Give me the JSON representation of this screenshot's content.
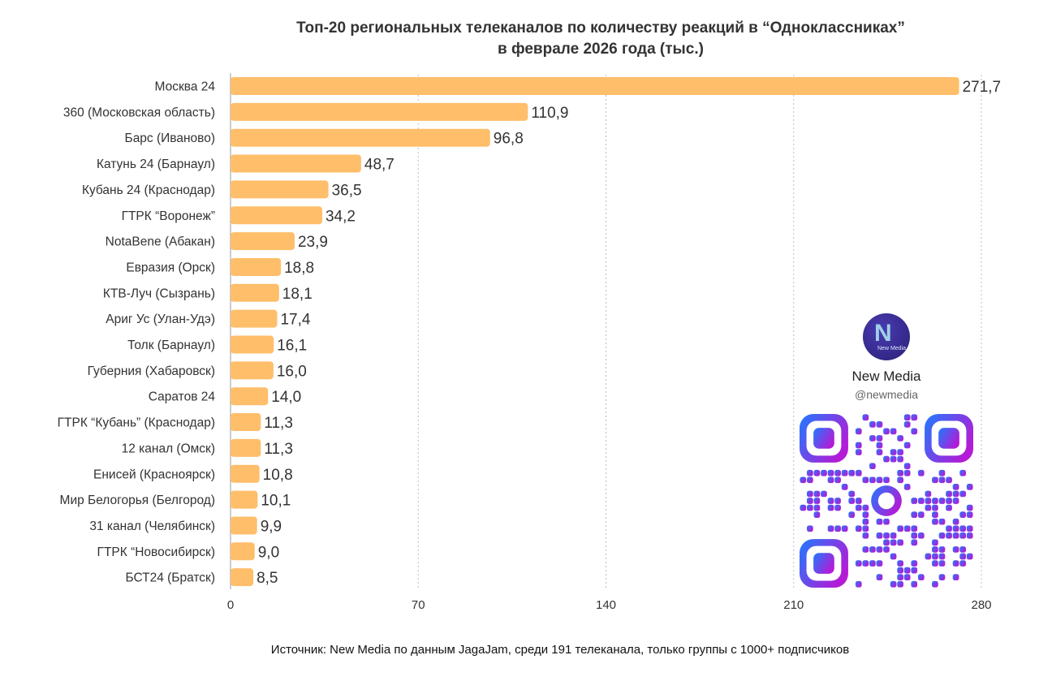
{
  "title_line1": "Топ-20 региональных телеканалов по количеству реакций в “Одноклассниках”",
  "title_line2": "в феврале 2026 года (тыс.)",
  "source": "Источник: New Media по данным JagaJam, среди 191 телеканала, только группы с 1000+ подписчиков",
  "brand": {
    "name": "New Media",
    "handle": "@newmedia",
    "logo_text": "New Media",
    "logo_icon": "new-media-logo-icon"
  },
  "qr_icon": "qr-code-icon",
  "colors": {
    "bar": "#FFBE6A",
    "grid": "#bdbdbd",
    "qr_start": "#1e7bff",
    "qr_end": "#b51ad6"
  },
  "chart_data": {
    "type": "bar",
    "orientation": "horizontal",
    "categories": [
      "Москва 24",
      "360 (Московская область)",
      "Барс (Иваново)",
      "Катунь 24 (Барнаул)",
      "Кубань 24 (Краснодар)",
      "ГТРК “Воронеж”",
      "NotaBene (Абакан)",
      "Евразия (Орск)",
      "КТВ-Луч (Сызрань)",
      "Ариг Ус (Улан-Удэ)",
      "Толк (Барнаул)",
      "Губерния (Хабаровск)",
      "Саратов 24",
      "ГТРК “Кубань” (Краснодар)",
      "12 канал (Омск)",
      "Енисей (Красноярск)",
      "Мир Белогорья (Белгород)",
      "31 канал (Челябинск)",
      "ГТРК “Новосибирск)",
      "БСТ24 (Братск)"
    ],
    "values": [
      271.7,
      110.9,
      96.8,
      48.7,
      36.5,
      34.2,
      23.9,
      18.8,
      18.1,
      17.4,
      16.1,
      16.0,
      14.0,
      11.3,
      11.3,
      10.8,
      10.1,
      9.9,
      9.0,
      8.5
    ],
    "value_labels": [
      "271,7",
      "110,9",
      "96,8",
      "48,7",
      "36,5",
      "34,2",
      "23,9",
      "18,8",
      "18,1",
      "17,4",
      "16,1",
      "16,0",
      "14,0",
      "11,3",
      "11,3",
      "10,8",
      "10,1",
      "9,9",
      "9,0",
      "8,5"
    ],
    "xlim": [
      0,
      280
    ],
    "xticks": [
      0,
      70,
      140,
      210,
      280
    ],
    "xtick_labels": [
      "0",
      "70",
      "140",
      "210",
      "280"
    ],
    "grid": "vertical dashed",
    "legend": "none"
  }
}
